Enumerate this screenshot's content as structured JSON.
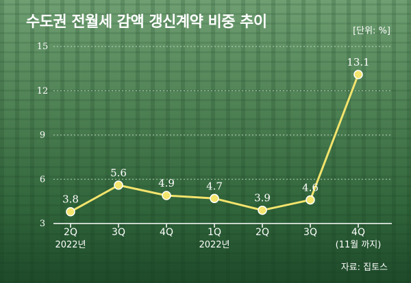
{
  "title": "수도권 전월세 감액 갱신계약 비중 추이",
  "unit_label": "[단위: %]",
  "source_label": "자료: 집토스",
  "colors": {
    "line": "#f3e46d",
    "marker_fill": "#f3e46d",
    "marker_stroke": "#ffffff",
    "text": "#ffffff",
    "axis": "#ffffff",
    "grid": "#d8e8d8"
  },
  "chart_data": {
    "type": "line",
    "title": "수도권 전월세 감액 갱신계약 비중 추이",
    "categories": [
      "2Q",
      "3Q",
      "4Q",
      "1Q",
      "2Q",
      "3Q",
      "4Q"
    ],
    "category_sublabels": [
      "2022년",
      "",
      "",
      "2022년",
      "",
      "",
      "(11월 까지)"
    ],
    "values": [
      3.8,
      5.6,
      4.9,
      4.7,
      3.9,
      4.6,
      13.1
    ],
    "value_labels": [
      "3.8",
      "5.6",
      "4.9",
      "4.7",
      "3.9",
      "4.6",
      "13.1"
    ],
    "yticks": [
      3,
      6,
      9,
      12,
      15
    ],
    "ylim": [
      3,
      15
    ],
    "grid": true,
    "legend": "none"
  }
}
